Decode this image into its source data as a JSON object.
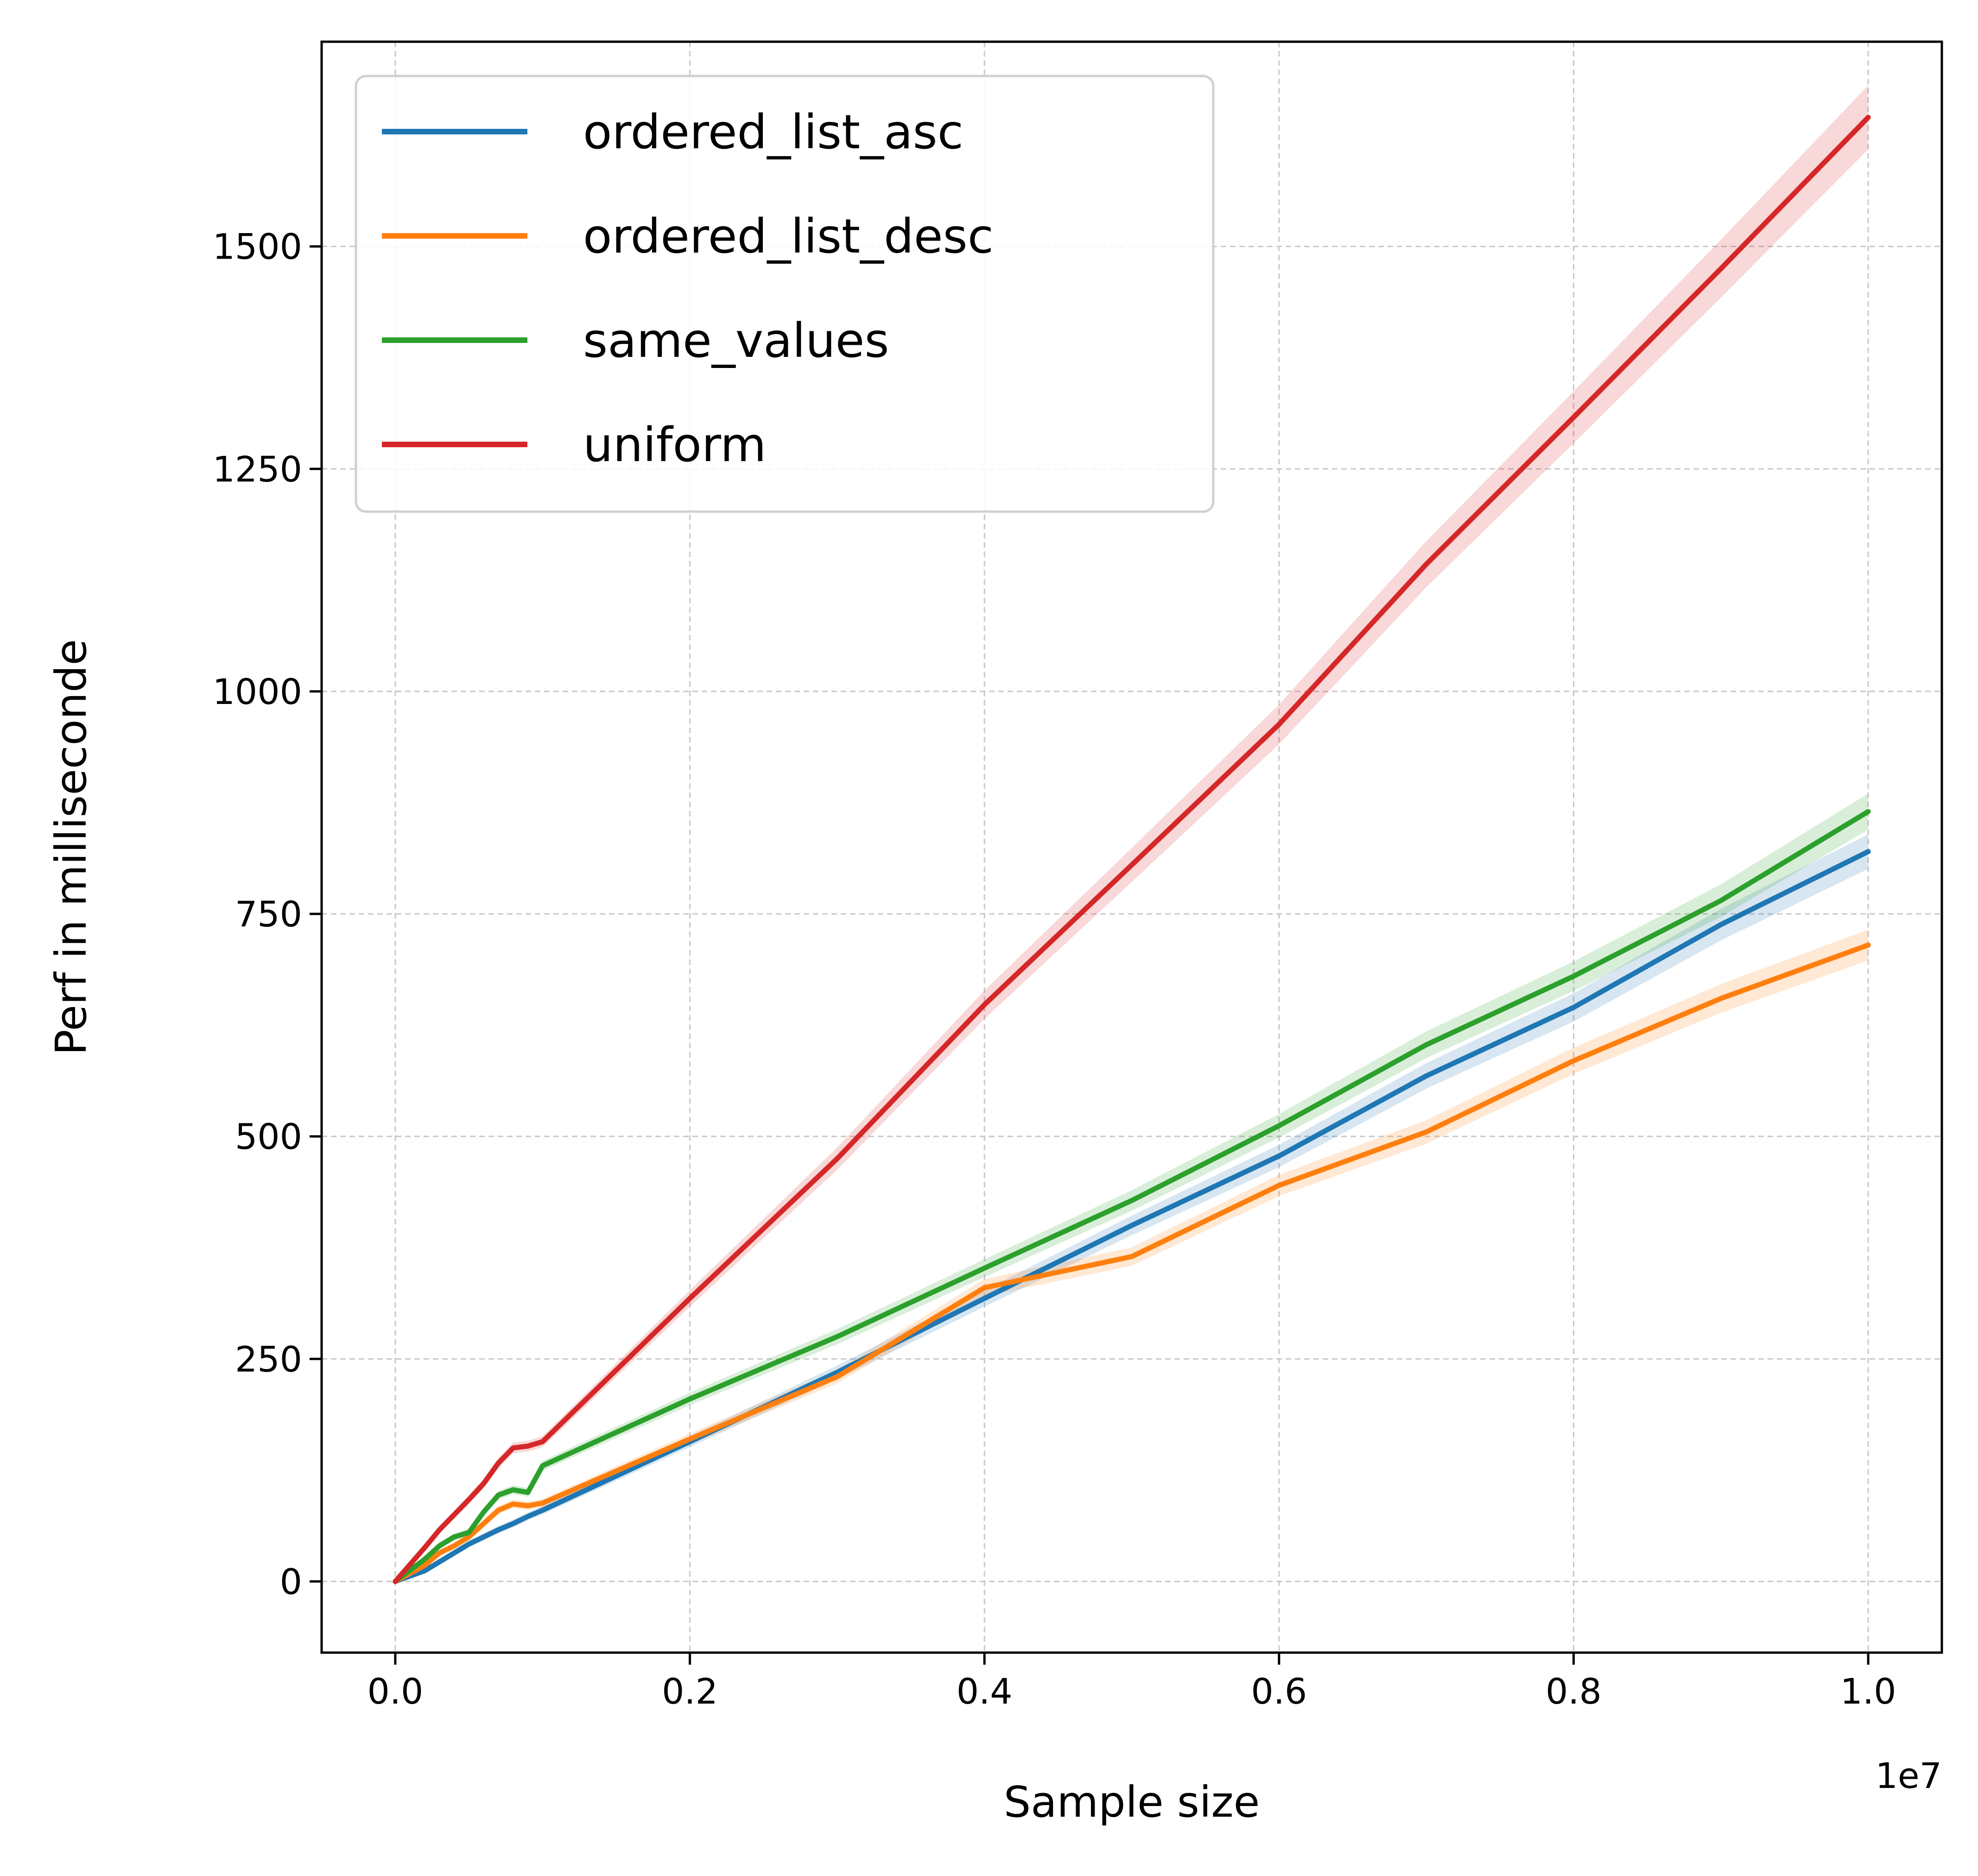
{
  "chart_data": {
    "type": "line",
    "title": "",
    "xlabel": "Sample size",
    "ylabel": "Perf in milliseconde",
    "x_offset_label": "1e7",
    "xlim": [
      -0.05,
      1.05
    ],
    "ylim": [
      -80,
      1730
    ],
    "x_ticks": [
      0.0,
      0.2,
      0.4,
      0.6,
      0.8,
      1.0
    ],
    "x_tick_labels": [
      "0.0",
      "0.2",
      "0.4",
      "0.6",
      "0.8",
      "1.0"
    ],
    "y_ticks": [
      0,
      250,
      500,
      750,
      1000,
      1250,
      1500
    ],
    "y_tick_labels": [
      "0",
      "250",
      "500",
      "750",
      "1000",
      "1250",
      "1500"
    ],
    "grid": true,
    "legend_position": "top-left",
    "x": [
      0.0,
      0.02,
      0.03,
      0.04,
      0.05,
      0.06,
      0.07,
      0.08,
      0.09,
      0.1,
      0.2,
      0.3,
      0.4,
      0.5,
      0.6,
      0.7,
      0.8,
      0.9,
      1.0
    ],
    "series": [
      {
        "name": "ordered_list_asc",
        "color": "#1f77b4",
        "values": [
          0,
          12,
          22,
          32,
          42,
          50,
          58,
          65,
          73,
          80,
          157,
          235,
          318,
          400,
          478,
          568,
          645,
          738,
          820
        ]
      },
      {
        "name": "ordered_list_desc",
        "color": "#ff7f0e",
        "values": [
          0,
          18,
          32,
          40,
          50,
          65,
          80,
          87,
          85,
          88,
          160,
          230,
          330,
          365,
          445,
          505,
          585,
          655,
          715
        ]
      },
      {
        "name": "same_values",
        "color": "#2ca02c",
        "values": [
          0,
          25,
          40,
          50,
          55,
          78,
          97,
          103,
          100,
          130,
          205,
          275,
          352,
          428,
          512,
          603,
          680,
          765,
          865
        ]
      },
      {
        "name": "uniform",
        "color": "#d62728",
        "values": [
          0,
          38,
          58,
          75,
          92,
          110,
          133,
          150,
          152,
          157,
          318,
          475,
          648,
          805,
          963,
          1143,
          1308,
          1475,
          1645
        ]
      }
    ]
  }
}
